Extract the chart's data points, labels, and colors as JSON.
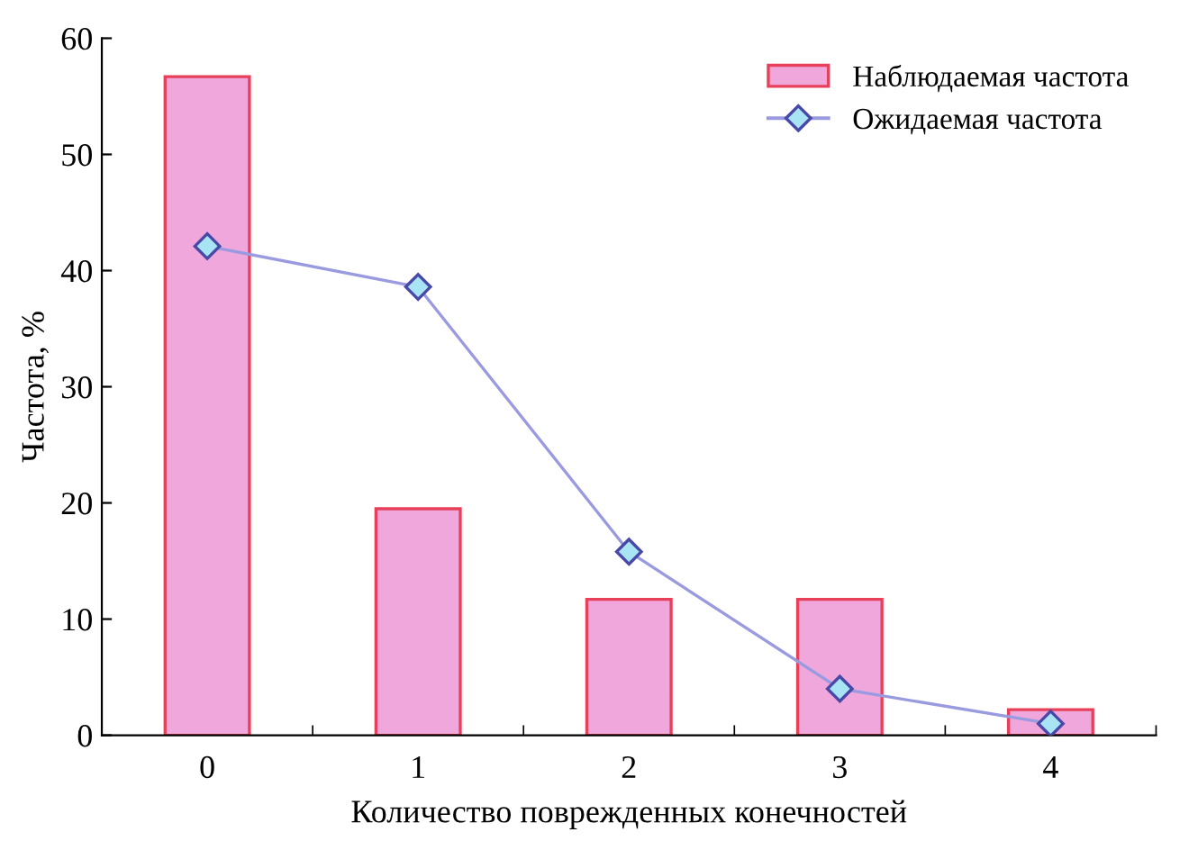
{
  "chart_data": {
    "type": "bar",
    "xlabel": "Количество поврежденных конечностей",
    "ylabel": "Частота, %",
    "categories": [
      "0",
      "1",
      "2",
      "3",
      "4"
    ],
    "series": [
      {
        "name": "Наблюдаемая частота",
        "color": "#f0a8dc",
        "values": [
          56.7,
          19.5,
          11.7,
          11.7,
          2.2
        ]
      },
      {
        "name": "Ожидаемая частота",
        "type": "line",
        "color": "#9a9ae0",
        "marker": "diamond",
        "values": [
          42.1,
          38.6,
          15.8,
          4.0,
          1.0
        ]
      }
    ],
    "ylim": [
      0,
      60
    ],
    "yticks": [
      0,
      10,
      20,
      30,
      40,
      50,
      60
    ],
    "grid": false,
    "legend": "top right"
  }
}
